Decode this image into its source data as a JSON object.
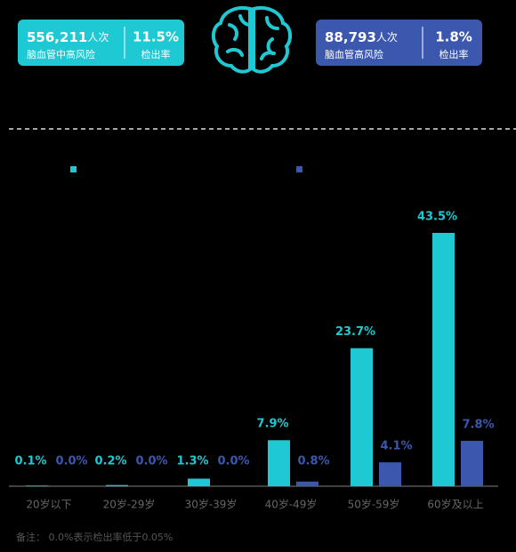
{
  "stats": [
    {
      "number": "556,211",
      "unit": "人次",
      "label": "脑血管中高风险",
      "rate": "11.5%",
      "rate_label": "检出率",
      "color": "#1ec9d3"
    },
    {
      "number": "88,793",
      "unit": "人次",
      "label": "脑血管高风险",
      "rate": "1.8%",
      "rate_label": "检出率",
      "color": "#3b58ae"
    }
  ],
  "chart_data": {
    "type": "bar",
    "categories": [
      "20岁以下",
      "20岁-29岁",
      "30岁-39岁",
      "40岁-49岁",
      "50岁-59岁",
      "60岁及以上"
    ],
    "series": [
      {
        "color": "#1ec9d3",
        "values": [
          0.1,
          0.2,
          1.3,
          7.9,
          23.7,
          43.5
        ],
        "value_labels": [
          "0.1%",
          "0.2%",
          "1.3%",
          "7.9%",
          "23.7%",
          "43.5%"
        ]
      },
      {
        "color": "#3b58ae",
        "values": [
          0.0,
          0.0,
          0.0,
          0.8,
          4.1,
          7.8
        ],
        "value_labels": [
          "0.0%",
          "0.0%",
          "0.0%",
          "0.8%",
          "4.1%",
          "7.8%"
        ]
      }
    ]
  },
  "footnote": "备注： 0.0%表示检出率低于0.05%"
}
